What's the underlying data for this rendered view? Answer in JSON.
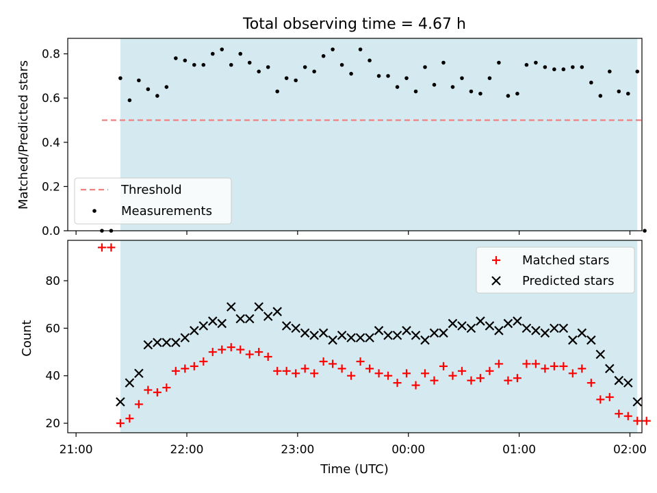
{
  "chart_data": [
    {
      "type": "scatter",
      "title": "Total observing time = 4.67 h",
      "xlabel": "",
      "ylabel": "Matched/Predicted stars",
      "ylim": [
        0,
        0.87
      ],
      "yticks": [
        "0.0",
        "0.2",
        "0.4",
        "0.6",
        "0.8"
      ],
      "shaded_region": {
        "start": "21:24",
        "end": "02:04",
        "color": "#d4eaf0"
      },
      "threshold": {
        "name": "Threshold",
        "value": 0.5,
        "x_start": "21:14",
        "x_end": "02:08",
        "color": "#f08080"
      },
      "legend": {
        "position": "lower-left",
        "entries": [
          "Threshold",
          "Measurements"
        ]
      },
      "series": [
        {
          "name": "Measurements",
          "marker": "dot",
          "color": "#000000",
          "points": [
            [
              "21:14",
              0.0
            ],
            [
              "21:19",
              0.0
            ],
            [
              "21:24",
              0.69
            ],
            [
              "21:29",
              0.59
            ],
            [
              "21:34",
              0.68
            ],
            [
              "21:39",
              0.64
            ],
            [
              "21:44",
              0.61
            ],
            [
              "21:49",
              0.65
            ],
            [
              "21:54",
              0.78
            ],
            [
              "21:59",
              0.77
            ],
            [
              "22:04",
              0.75
            ],
            [
              "22:09",
              0.75
            ],
            [
              "22:14",
              0.8
            ],
            [
              "22:19",
              0.82
            ],
            [
              "22:24",
              0.75
            ],
            [
              "22:29",
              0.8
            ],
            [
              "22:34",
              0.76
            ],
            [
              "22:39",
              0.72
            ],
            [
              "22:44",
              0.74
            ],
            [
              "22:49",
              0.63
            ],
            [
              "22:54",
              0.69
            ],
            [
              "22:59",
              0.68
            ],
            [
              "23:04",
              0.74
            ],
            [
              "23:09",
              0.72
            ],
            [
              "23:14",
              0.79
            ],
            [
              "23:19",
              0.82
            ],
            [
              "23:24",
              0.75
            ],
            [
              "23:29",
              0.71
            ],
            [
              "23:34",
              0.82
            ],
            [
              "23:39",
              0.77
            ],
            [
              "23:44",
              0.7
            ],
            [
              "23:49",
              0.7
            ],
            [
              "23:54",
              0.65
            ],
            [
              "23:59",
              0.69
            ],
            [
              "00:04",
              0.63
            ],
            [
              "00:09",
              0.74
            ],
            [
              "00:14",
              0.66
            ],
            [
              "00:19",
              0.76
            ],
            [
              "00:24",
              0.65
            ],
            [
              "00:29",
              0.69
            ],
            [
              "00:34",
              0.63
            ],
            [
              "00:39",
              0.62
            ],
            [
              "00:44",
              0.69
            ],
            [
              "00:49",
              0.76
            ],
            [
              "00:54",
              0.61
            ],
            [
              "00:59",
              0.62
            ],
            [
              "01:04",
              0.75
            ],
            [
              "01:09",
              0.76
            ],
            [
              "01:14",
              0.74
            ],
            [
              "01:19",
              0.73
            ],
            [
              "01:24",
              0.73
            ],
            [
              "01:29",
              0.74
            ],
            [
              "01:34",
              0.74
            ],
            [
              "01:39",
              0.67
            ],
            [
              "01:44",
              0.61
            ],
            [
              "01:49",
              0.72
            ],
            [
              "01:54",
              0.63
            ],
            [
              "01:59",
              0.62
            ],
            [
              "02:04",
              0.72
            ],
            [
              "02:08",
              0.0
            ]
          ]
        }
      ]
    },
    {
      "type": "scatter",
      "title": "",
      "xlabel": "Time (UTC)",
      "ylabel": "Count",
      "ylim": [
        16,
        97
      ],
      "yticks": [
        "20",
        "40",
        "60",
        "80"
      ],
      "xticks": [
        "21:00",
        "22:00",
        "23:00",
        "00:00",
        "01:00",
        "02:00"
      ],
      "shaded_region": {
        "start": "21:24",
        "end": "02:04",
        "color": "#d4eaf0"
      },
      "legend": {
        "position": "top-right",
        "entries": [
          "Matched stars",
          "Predicted stars"
        ]
      },
      "series": [
        {
          "name": "Matched stars",
          "marker": "plus",
          "color": "#ff0000",
          "points": [
            [
              "21:14",
              94
            ],
            [
              "21:19",
              94
            ],
            [
              "21:24",
              20
            ],
            [
              "21:29",
              22
            ],
            [
              "21:34",
              28
            ],
            [
              "21:39",
              34
            ],
            [
              "21:44",
              33
            ],
            [
              "21:49",
              35
            ],
            [
              "21:54",
              42
            ],
            [
              "21:59",
              43
            ],
            [
              "22:04",
              44
            ],
            [
              "22:09",
              46
            ],
            [
              "22:14",
              50
            ],
            [
              "22:19",
              51
            ],
            [
              "22:24",
              52
            ],
            [
              "22:29",
              51
            ],
            [
              "22:34",
              49
            ],
            [
              "22:39",
              50
            ],
            [
              "22:44",
              48
            ],
            [
              "22:49",
              42
            ],
            [
              "22:54",
              42
            ],
            [
              "22:59",
              41
            ],
            [
              "23:04",
              43
            ],
            [
              "23:09",
              41
            ],
            [
              "23:14",
              46
            ],
            [
              "23:19",
              45
            ],
            [
              "23:24",
              43
            ],
            [
              "23:29",
              40
            ],
            [
              "23:34",
              46
            ],
            [
              "23:39",
              43
            ],
            [
              "23:44",
              41
            ],
            [
              "23:49",
              40
            ],
            [
              "23:54",
              37
            ],
            [
              "23:59",
              41
            ],
            [
              "00:04",
              36
            ],
            [
              "00:09",
              41
            ],
            [
              "00:14",
              38
            ],
            [
              "00:19",
              44
            ],
            [
              "00:24",
              40
            ],
            [
              "00:29",
              42
            ],
            [
              "00:34",
              38
            ],
            [
              "00:39",
              39
            ],
            [
              "00:44",
              42
            ],
            [
              "00:49",
              45
            ],
            [
              "00:54",
              38
            ],
            [
              "00:59",
              39
            ],
            [
              "01:04",
              45
            ],
            [
              "01:09",
              45
            ],
            [
              "01:14",
              43
            ],
            [
              "01:19",
              44
            ],
            [
              "01:24",
              44
            ],
            [
              "01:29",
              41
            ],
            [
              "01:34",
              43
            ],
            [
              "01:39",
              37
            ],
            [
              "01:44",
              30
            ],
            [
              "01:49",
              31
            ],
            [
              "01:54",
              24
            ],
            [
              "01:59",
              23
            ],
            [
              "02:04",
              21
            ],
            [
              "02:09",
              21
            ]
          ]
        },
        {
          "name": "Predicted stars",
          "marker": "x",
          "color": "#000000",
          "points": [
            [
              "21:24",
              29
            ],
            [
              "21:29",
              37
            ],
            [
              "21:34",
              41
            ],
            [
              "21:39",
              53
            ],
            [
              "21:44",
              54
            ],
            [
              "21:49",
              54
            ],
            [
              "21:54",
              54
            ],
            [
              "21:59",
              56
            ],
            [
              "22:04",
              59
            ],
            [
              "22:09",
              61
            ],
            [
              "22:14",
              63
            ],
            [
              "22:19",
              62
            ],
            [
              "22:24",
              69
            ],
            [
              "22:29",
              64
            ],
            [
              "22:34",
              64
            ],
            [
              "22:39",
              69
            ],
            [
              "22:44",
              65
            ],
            [
              "22:49",
              67
            ],
            [
              "22:54",
              61
            ],
            [
              "22:59",
              60
            ],
            [
              "23:04",
              58
            ],
            [
              "23:09",
              57
            ],
            [
              "23:14",
              58
            ],
            [
              "23:19",
              55
            ],
            [
              "23:24",
              57
            ],
            [
              "23:29",
              56
            ],
            [
              "23:34",
              56
            ],
            [
              "23:39",
              56
            ],
            [
              "23:44",
              59
            ],
            [
              "23:49",
              57
            ],
            [
              "23:54",
              57
            ],
            [
              "23:59",
              59
            ],
            [
              "00:04",
              57
            ],
            [
              "00:09",
              55
            ],
            [
              "00:14",
              58
            ],
            [
              "00:19",
              58
            ],
            [
              "00:24",
              62
            ],
            [
              "00:29",
              61
            ],
            [
              "00:34",
              60
            ],
            [
              "00:39",
              63
            ],
            [
              "00:44",
              61
            ],
            [
              "00:49",
              59
            ],
            [
              "00:54",
              62
            ],
            [
              "00:59",
              63
            ],
            [
              "01:04",
              60
            ],
            [
              "01:09",
              59
            ],
            [
              "01:14",
              58
            ],
            [
              "01:19",
              60
            ],
            [
              "01:24",
              60
            ],
            [
              "01:29",
              55
            ],
            [
              "01:34",
              58
            ],
            [
              "01:39",
              55
            ],
            [
              "01:44",
              49
            ],
            [
              "01:49",
              43
            ],
            [
              "01:54",
              38
            ],
            [
              "01:59",
              37
            ],
            [
              "02:04",
              29
            ]
          ]
        }
      ]
    }
  ]
}
